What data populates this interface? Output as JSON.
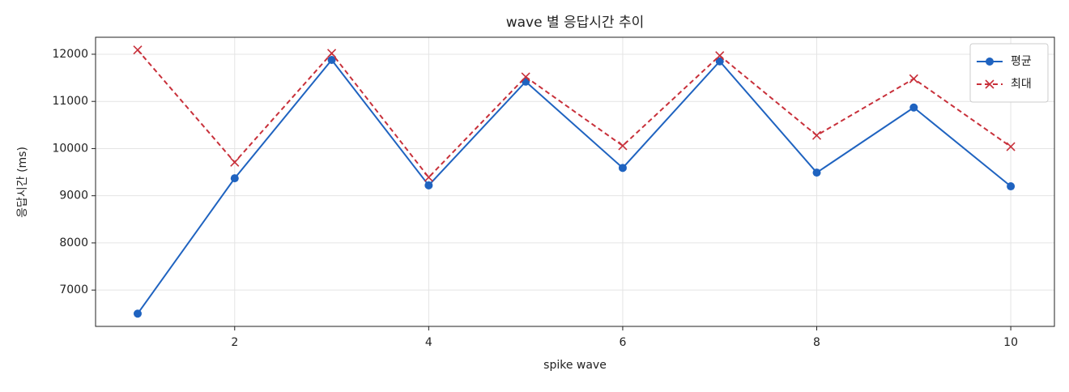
{
  "chart_data": {
    "type": "line",
    "title": "wave 별 응답시간 추이",
    "xlabel": "spike wave",
    "ylabel": "응답시간 (ms)",
    "x": [
      1,
      2,
      3,
      4,
      5,
      6,
      7,
      8,
      9,
      10
    ],
    "series": [
      {
        "name": "평균",
        "color": "#1f63c0",
        "marker": "o",
        "linestyle": "solid",
        "values": [
          6500,
          9370,
          11880,
          9220,
          11420,
          9590,
          11850,
          9490,
          10870,
          9200
        ]
      },
      {
        "name": "최대",
        "color": "#c8303a",
        "marker": "x",
        "linestyle": "dashed",
        "values": [
          12090,
          9710,
          12020,
          9390,
          11520,
          10060,
          11970,
          10280,
          11480,
          10040
        ]
      }
    ],
    "xlim": [
      0.566,
      10.45
    ],
    "ylim": [
      6230,
      12360
    ],
    "xticks": [
      2,
      4,
      6,
      8,
      10
    ],
    "yticks": [
      7000,
      8000,
      9000,
      10000,
      11000,
      12000
    ],
    "grid": true,
    "legend": "upper right"
  }
}
